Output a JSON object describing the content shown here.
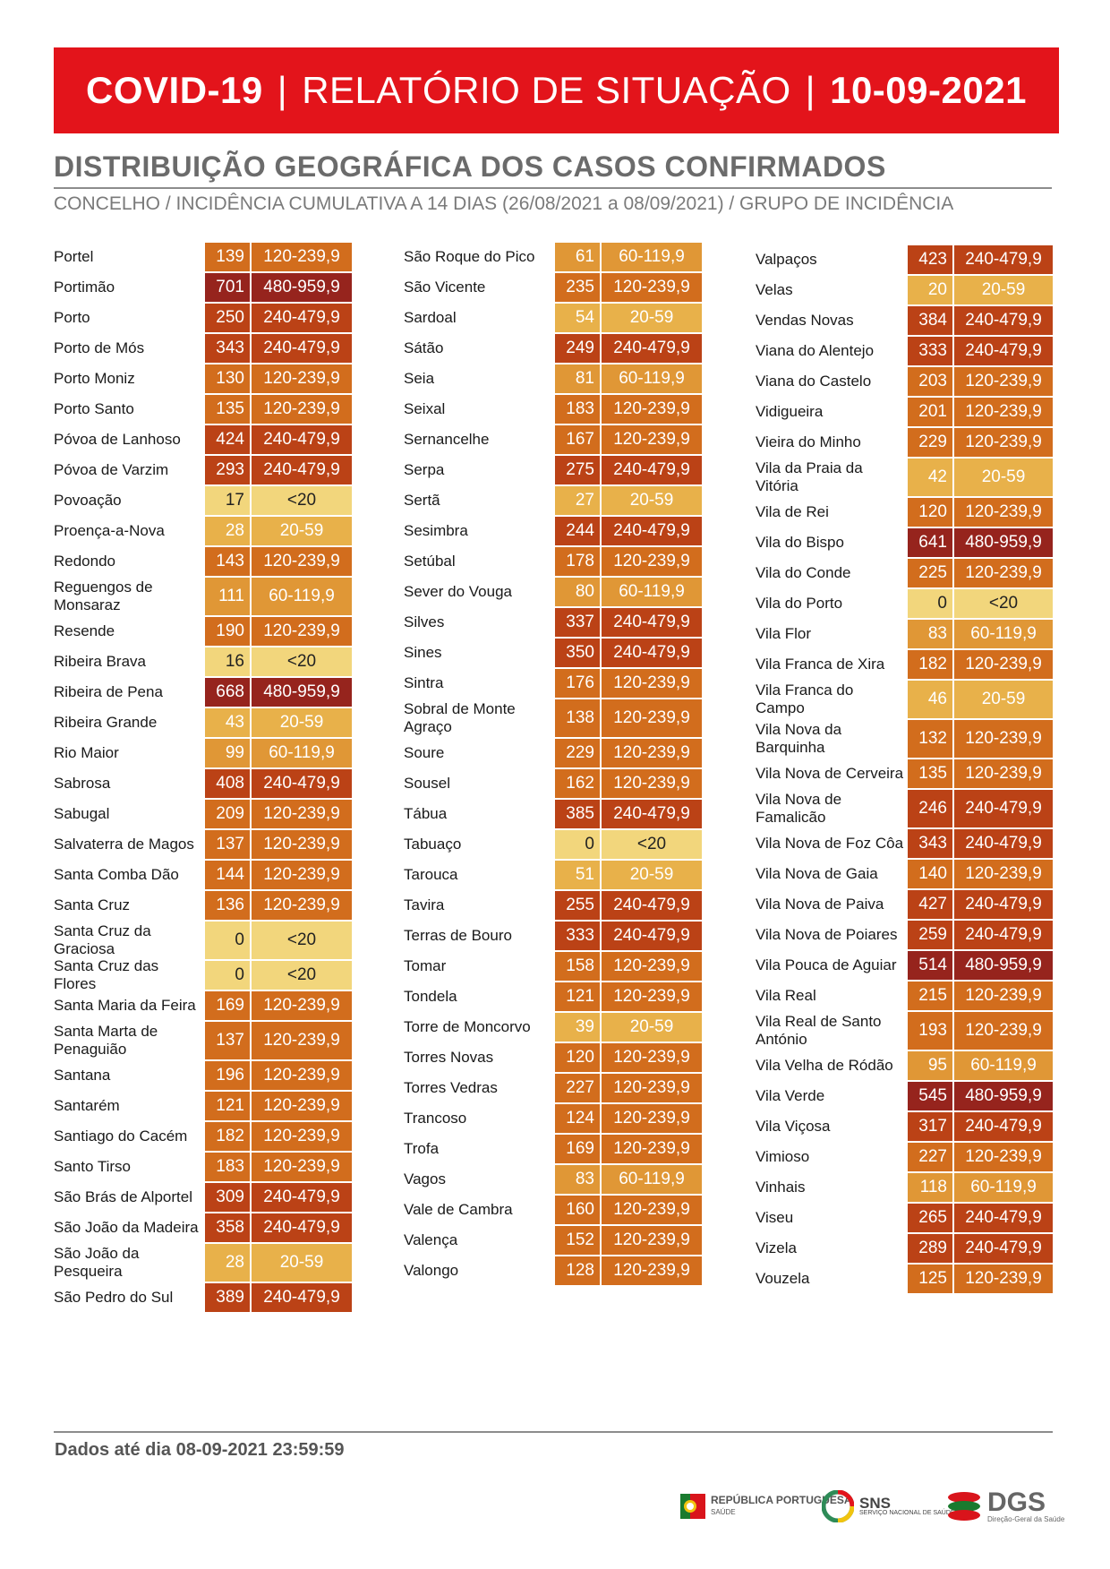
{
  "header": {
    "title_left": "COVID-19",
    "separator": "|",
    "title_mid": "RELATÓRIO DE SITUAÇÃO",
    "title_date": "10-09-2021"
  },
  "section": {
    "title": "DISTRIBUIÇÃO GEOGRÁFICA DOS CASOS CONFIRMADOS",
    "subtitle": "CONCELHO / INCIDÊNCIA CUMULATIVA A 14 DIAS (26/08/2021 a 08/09/2021) / GRUPO DE INCIDÊNCIA"
  },
  "group_colors": {
    "<20": "#f2d67c",
    "20-59": "#e8b14a",
    "60-119,9": "#e09736",
    "120-239,9": "#d26d1d",
    "240-479,9": "#bb4216",
    "480-959,9": "#96241d"
  },
  "columns": [
    [
      {
        "name": "Portel",
        "value": "139",
        "group": "120-239,9"
      },
      {
        "name": "Portimão",
        "value": "701",
        "group": "480-959,9"
      },
      {
        "name": "Porto",
        "value": "250",
        "group": "240-479,9"
      },
      {
        "name": "Porto de Mós",
        "value": "343",
        "group": "240-479,9"
      },
      {
        "name": "Porto Moniz",
        "value": "130",
        "group": "120-239,9"
      },
      {
        "name": "Porto Santo",
        "value": "135",
        "group": "120-239,9"
      },
      {
        "name": "Póvoa de Lanhoso",
        "value": "424",
        "group": "240-479,9"
      },
      {
        "name": "Póvoa de Varzim",
        "value": "293",
        "group": "240-479,9"
      },
      {
        "name": "Povoação",
        "value": "17",
        "group": "<20"
      },
      {
        "name": "Proença-a-Nova",
        "value": "28",
        "group": "20-59"
      },
      {
        "name": "Redondo",
        "value": "143",
        "group": "120-239,9"
      },
      {
        "name": "Reguengos de Monsaraz",
        "value": "111",
        "group": "60-119,9"
      },
      {
        "name": "Resende",
        "value": "190",
        "group": "120-239,9"
      },
      {
        "name": "Ribeira Brava",
        "value": "16",
        "group": "<20"
      },
      {
        "name": "Ribeira de Pena",
        "value": "668",
        "group": "480-959,9"
      },
      {
        "name": "Ribeira Grande",
        "value": "43",
        "group": "20-59"
      },
      {
        "name": "Rio Maior",
        "value": "99",
        "group": "60-119,9"
      },
      {
        "name": "Sabrosa",
        "value": "408",
        "group": "240-479,9"
      },
      {
        "name": "Sabugal",
        "value": "209",
        "group": "120-239,9"
      },
      {
        "name": "Salvaterra de Magos",
        "value": "137",
        "group": "120-239,9"
      },
      {
        "name": "Santa Comba Dão",
        "value": "144",
        "group": "120-239,9"
      },
      {
        "name": "Santa Cruz",
        "value": "136",
        "group": "120-239,9"
      },
      {
        "name": "Santa Cruz da Graciosa",
        "value": "0",
        "group": "<20"
      },
      {
        "name": "Santa Cruz das Flores",
        "value": "0",
        "group": "<20"
      },
      {
        "name": "Santa Maria da Feira",
        "value": "169",
        "group": "120-239,9"
      },
      {
        "name": "Santa Marta de Penaguião",
        "value": "137",
        "group": "120-239,9"
      },
      {
        "name": "Santana",
        "value": "196",
        "group": "120-239,9"
      },
      {
        "name": "Santarém",
        "value": "121",
        "group": "120-239,9"
      },
      {
        "name": "Santiago do Cacém",
        "value": "182",
        "group": "120-239,9"
      },
      {
        "name": "Santo Tirso",
        "value": "183",
        "group": "120-239,9"
      },
      {
        "name": "São Brás de Alportel",
        "value": "309",
        "group": "240-479,9"
      },
      {
        "name": "São João da Madeira",
        "value": "358",
        "group": "240-479,9"
      },
      {
        "name": "São João da Pesqueira",
        "value": "28",
        "group": "20-59"
      },
      {
        "name": "São Pedro do Sul",
        "value": "389",
        "group": "240-479,9"
      }
    ],
    [
      {
        "name": "São Roque do Pico",
        "value": "61",
        "group": "60-119,9"
      },
      {
        "name": "São Vicente",
        "value": "235",
        "group": "120-239,9"
      },
      {
        "name": "Sardoal",
        "value": "54",
        "group": "20-59"
      },
      {
        "name": "Sátão",
        "value": "249",
        "group": "240-479,9"
      },
      {
        "name": "Seia",
        "value": "81",
        "group": "60-119,9"
      },
      {
        "name": "Seixal",
        "value": "183",
        "group": "120-239,9"
      },
      {
        "name": "Sernancelhe",
        "value": "167",
        "group": "120-239,9"
      },
      {
        "name": "Serpa",
        "value": "275",
        "group": "240-479,9"
      },
      {
        "name": "Sertã",
        "value": "27",
        "group": "20-59"
      },
      {
        "name": "Sesimbra",
        "value": "244",
        "group": "240-479,9"
      },
      {
        "name": "Setúbal",
        "value": "178",
        "group": "120-239,9"
      },
      {
        "name": "Sever do Vouga",
        "value": "80",
        "group": "60-119,9"
      },
      {
        "name": "Silves",
        "value": "337",
        "group": "240-479,9"
      },
      {
        "name": "Sines",
        "value": "350",
        "group": "240-479,9"
      },
      {
        "name": "Sintra",
        "value": "176",
        "group": "120-239,9"
      },
      {
        "name": "Sobral de Monte Agraço",
        "value": "138",
        "group": "120-239,9"
      },
      {
        "name": "Soure",
        "value": "229",
        "group": "120-239,9"
      },
      {
        "name": "Sousel",
        "value": "162",
        "group": "120-239,9"
      },
      {
        "name": "Tábua",
        "value": "385",
        "group": "240-479,9"
      },
      {
        "name": "Tabuaço",
        "value": "0",
        "group": "<20"
      },
      {
        "name": "Tarouca",
        "value": "51",
        "group": "20-59"
      },
      {
        "name": "Tavira",
        "value": "255",
        "group": "240-479,9"
      },
      {
        "name": "Terras de Bouro",
        "value": "333",
        "group": "240-479,9"
      },
      {
        "name": "Tomar",
        "value": "158",
        "group": "120-239,9"
      },
      {
        "name": "Tondela",
        "value": "121",
        "group": "120-239,9"
      },
      {
        "name": "Torre de Moncorvo",
        "value": "39",
        "group": "20-59"
      },
      {
        "name": "Torres Novas",
        "value": "120",
        "group": "120-239,9"
      },
      {
        "name": "Torres Vedras",
        "value": "227",
        "group": "120-239,9"
      },
      {
        "name": "Trancoso",
        "value": "124",
        "group": "120-239,9"
      },
      {
        "name": "Trofa",
        "value": "169",
        "group": "120-239,9"
      },
      {
        "name": "Vagos",
        "value": "83",
        "group": "60-119,9"
      },
      {
        "name": "Vale de Cambra",
        "value": "160",
        "group": "120-239,9"
      },
      {
        "name": "Valença",
        "value": "152",
        "group": "120-239,9"
      },
      {
        "name": "Valongo",
        "value": "128",
        "group": "120-239,9"
      }
    ],
    [
      {
        "name": "Valpaços",
        "value": "423",
        "group": "240-479,9"
      },
      {
        "name": "Velas",
        "value": "20",
        "group": "20-59"
      },
      {
        "name": "Vendas Novas",
        "value": "384",
        "group": "240-479,9"
      },
      {
        "name": "Viana do Alentejo",
        "value": "333",
        "group": "240-479,9"
      },
      {
        "name": "Viana do Castelo",
        "value": "203",
        "group": "120-239,9"
      },
      {
        "name": "Vidigueira",
        "value": "201",
        "group": "120-239,9"
      },
      {
        "name": "Vieira do Minho",
        "value": "229",
        "group": "120-239,9"
      },
      {
        "name": "Vila da Praia da Vitória",
        "value": "42",
        "group": "20-59"
      },
      {
        "name": "Vila de Rei",
        "value": "120",
        "group": "120-239,9"
      },
      {
        "name": "Vila do Bispo",
        "value": "641",
        "group": "480-959,9"
      },
      {
        "name": "Vila do Conde",
        "value": "225",
        "group": "120-239,9"
      },
      {
        "name": "Vila do Porto",
        "value": "0",
        "group": "<20"
      },
      {
        "name": "Vila Flor",
        "value": "83",
        "group": "60-119,9"
      },
      {
        "name": "Vila Franca de Xira",
        "value": "182",
        "group": "120-239,9"
      },
      {
        "name": "Vila Franca do Campo",
        "value": "46",
        "group": "20-59"
      },
      {
        "name": "Vila Nova da Barquinha",
        "value": "132",
        "group": "120-239,9"
      },
      {
        "name": "Vila Nova de Cerveira",
        "value": "135",
        "group": "120-239,9"
      },
      {
        "name": "Vila Nova de Famalicão",
        "value": "246",
        "group": "240-479,9"
      },
      {
        "name": "Vila Nova de Foz Côa",
        "value": "343",
        "group": "240-479,9"
      },
      {
        "name": "Vila Nova de Gaia",
        "value": "140",
        "group": "120-239,9"
      },
      {
        "name": "Vila Nova de Paiva",
        "value": "427",
        "group": "240-479,9"
      },
      {
        "name": "Vila Nova de Poiares",
        "value": "259",
        "group": "240-479,9"
      },
      {
        "name": "Vila Pouca de Aguiar",
        "value": "514",
        "group": "480-959,9"
      },
      {
        "name": "Vila Real",
        "value": "215",
        "group": "120-239,9"
      },
      {
        "name": "Vila Real de Santo António",
        "value": "193",
        "group": "120-239,9"
      },
      {
        "name": "Vila Velha de Ródão",
        "value": "95",
        "group": "60-119,9"
      },
      {
        "name": "Vila Verde",
        "value": "545",
        "group": "480-959,9"
      },
      {
        "name": "Vila Viçosa",
        "value": "317",
        "group": "240-479,9"
      },
      {
        "name": "Vimioso",
        "value": "227",
        "group": "120-239,9"
      },
      {
        "name": "Vinhais",
        "value": "118",
        "group": "60-119,9"
      },
      {
        "name": "Viseu",
        "value": "265",
        "group": "240-479,9"
      },
      {
        "name": "Vizela",
        "value": "289",
        "group": "240-479,9"
      },
      {
        "name": "Vouzela",
        "value": "125",
        "group": "120-239,9"
      }
    ]
  ],
  "footer": {
    "data_note": "Dados até dia 08-09-2021 23:59:59",
    "logos": [
      {
        "icon": "republica-portuguesa-emblem",
        "text": "REPÚBLICA PORTUGUESA",
        "sub": "SAÚDE"
      },
      {
        "icon": "sns-logo",
        "text": "SNS",
        "sub": "SERVIÇO NACIONAL DE SAÚDE"
      },
      {
        "icon": "dgs-logo",
        "text": "DGS",
        "sub": "Direção-Geral da Saúde"
      }
    ]
  }
}
